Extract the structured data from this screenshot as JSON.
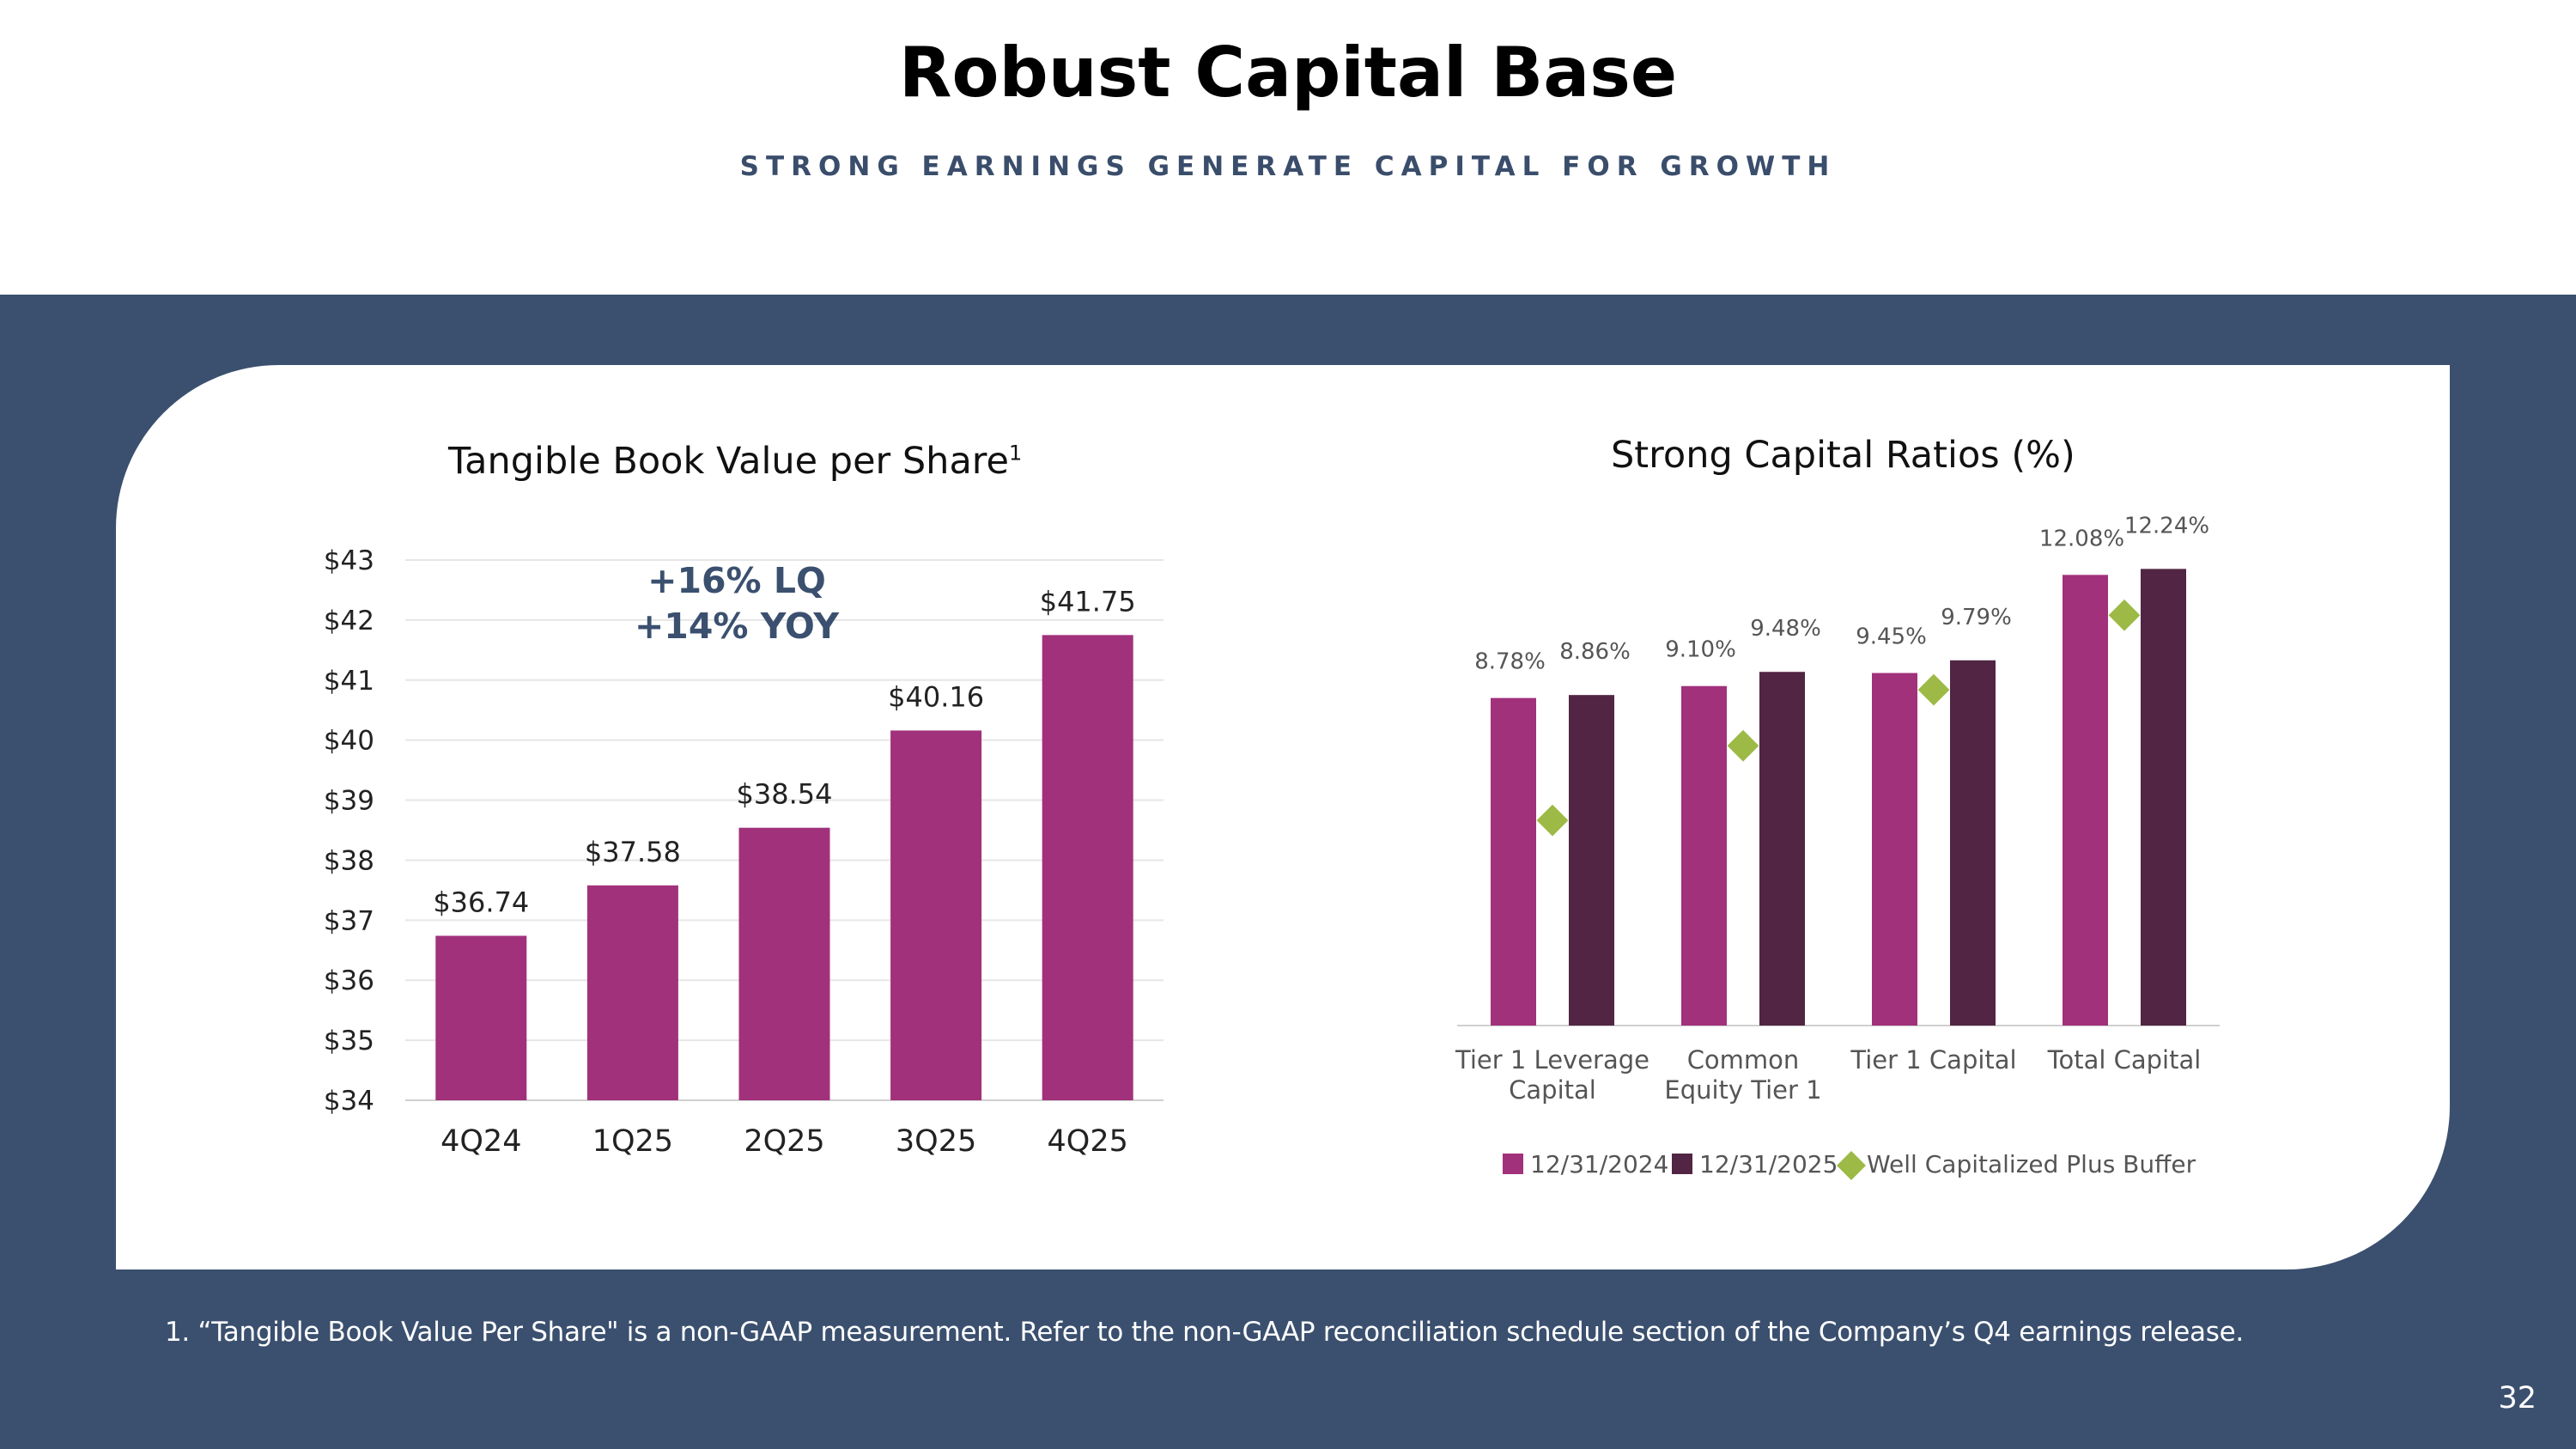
{
  "slide": {
    "title": "Robust Capital Base",
    "subtitle": "STRONG EARNINGS GENERATE CAPITAL FOR GROWTH",
    "footnote": "1. “Tangible Book Value Per Share\" is a non-GAAP measurement. Refer to the non-GAAP reconciliation schedule section of the Company’s Q4 earnings release.",
    "page_number": "32"
  },
  "colors": {
    "band": "#3b506f",
    "bar_primary": "#a1317b",
    "bar_secondary": "#512543",
    "marker": "#9cba45",
    "annotation": "#3b506f"
  },
  "chart_data": [
    {
      "type": "bar",
      "title": "Tangible Book Value per Share",
      "title_superscript": "1",
      "categories": [
        "4Q24",
        "1Q25",
        "2Q25",
        "3Q25",
        "4Q25"
      ],
      "values": [
        36.74,
        37.58,
        38.54,
        40.16,
        41.75
      ],
      "data_labels": [
        "$36.74",
        "$37.58",
        "$38.54",
        "$40.16",
        "$41.75"
      ],
      "ylim": [
        34,
        43
      ],
      "yticks": [
        34,
        35,
        36,
        37,
        38,
        39,
        40,
        41,
        42,
        43
      ],
      "ytick_labels": [
        "$34",
        "$35",
        "$36",
        "$37",
        "$38",
        "$39",
        "$40",
        "$41",
        "$42",
        "$43"
      ],
      "gridlines": true,
      "annotation": [
        "+16% LQ",
        "+14%  YOY"
      ]
    },
    {
      "type": "bar",
      "title": "Strong Capital Ratios (%)",
      "categories": [
        [
          "Tier 1 Leverage",
          "Capital"
        ],
        [
          "Common",
          "Equity Tier 1"
        ],
        [
          "Tier 1 Capital"
        ],
        [
          "Total Capital"
        ]
      ],
      "series": [
        {
          "name": "12/31/2024",
          "values": [
            8.78,
            9.1,
            9.45,
            12.08
          ],
          "labels": [
            "8.78%",
            "9.10%",
            "9.45%",
            "12.08%"
          ]
        },
        {
          "name": "12/31/2025",
          "values": [
            8.86,
            9.48,
            9.79,
            12.24
          ],
          "labels": [
            "8.86%",
            "9.48%",
            "9.79%",
            "12.24%"
          ]
        }
      ],
      "markers": {
        "name": "Well Capitalized Plus Buffer",
        "values": [
          5.5,
          7.5,
          9.0,
          11.0
        ]
      },
      "ylim": [
        0,
        13.1
      ],
      "gridlines": false,
      "legend": "bottom"
    }
  ]
}
